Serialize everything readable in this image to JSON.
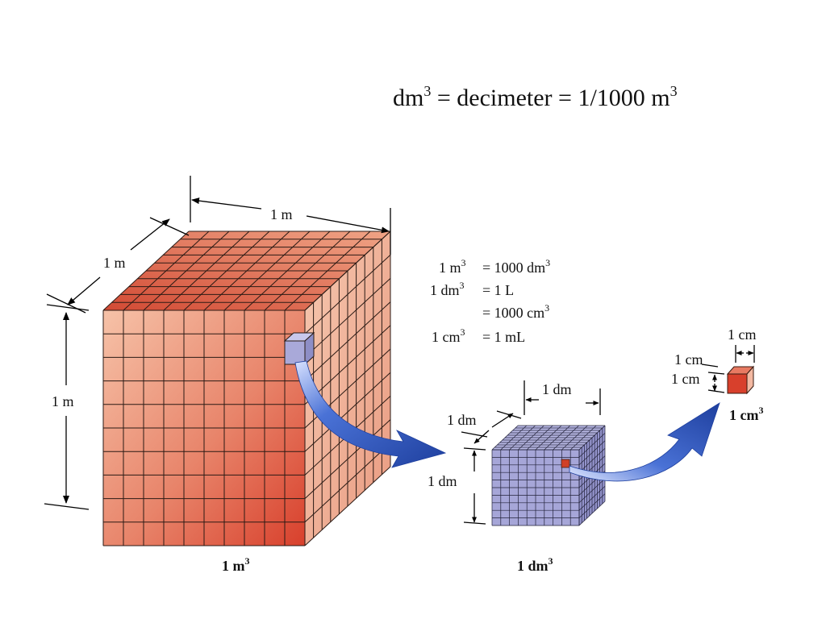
{
  "header": {
    "base": "dm",
    "sup1": "3",
    "middle": " = decimeter = 1/1000 m",
    "sup2": "3"
  },
  "big_cube": {
    "label_base": "1 m",
    "label_sup": "3",
    "dim_top": "1 m",
    "dim_side": "1 m",
    "dim_height": "1 m",
    "colors": {
      "front": "#e8846a",
      "top": "#d9604a",
      "side": "#f0b094",
      "highlight": "#a9a9d9"
    }
  },
  "mid_cube": {
    "label_base": "1 dm",
    "label_sup": "3",
    "dim_top": "1 dm",
    "dim_side": "1 dm",
    "dim_height": "1 dm",
    "colors": {
      "fill": "#a6a6d8",
      "highlight": "#d04028"
    }
  },
  "small_cube": {
    "label_base": "1 cm",
    "label_sup": "3",
    "dim_top": "1 cm",
    "dim_side": "1 cm",
    "dim_height": "1 cm",
    "colors": {
      "front": "#d8402c",
      "top": "#e87a62",
      "side": "#f3b9a2"
    }
  },
  "equations": [
    {
      "lhs": "1 m",
      "lhs_sup": "3",
      "rhs": "= 1000 dm",
      "rhs_sup": "3"
    },
    {
      "lhs": "1 dm",
      "lhs_sup": "3",
      "rhs": "= 1 L",
      "rhs_sup": ""
    },
    {
      "lhs": "",
      "lhs_sup": "",
      "rhs": "= 1000 cm",
      "rhs_sup": "3"
    },
    {
      "lhs": "1 cm",
      "lhs_sup": "3",
      "rhs": "= 1 mL",
      "rhs_sup": ""
    }
  ],
  "arrow_color": "#2f56b8"
}
